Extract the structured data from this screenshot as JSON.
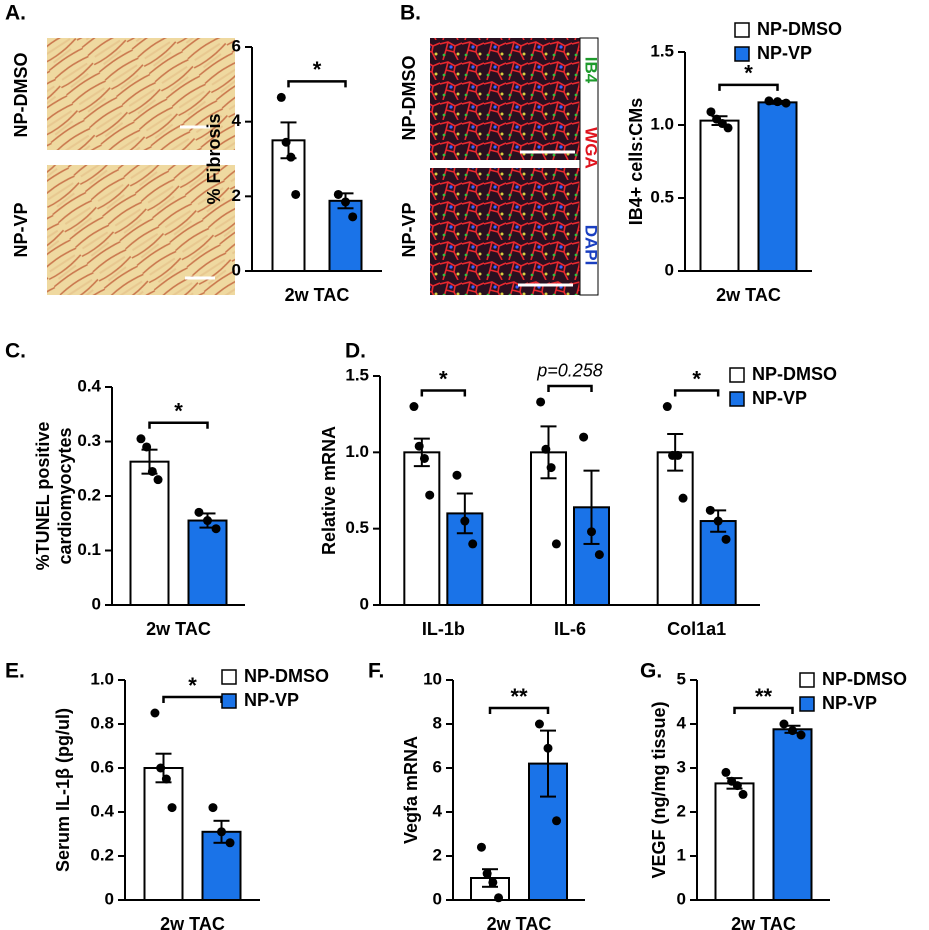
{
  "chart_data": [
    {
      "type": "bar",
      "panel": "A.",
      "ylabel": [
        "% Fibrosis"
      ],
      "categories": [
        "2w TAC"
      ],
      "ylim": [
        0,
        6
      ],
      "yticks": [
        0,
        2,
        4,
        6
      ],
      "image_rows": [
        "NP-DMSO",
        "NP-VP"
      ],
      "series": [
        {
          "color": "#ffffff",
          "values": [
            3.5
          ],
          "errors": [
            0.48
          ],
          "points": [
            [
              4.65,
              3.45,
              3.05,
              2.05
            ]
          ]
        },
        {
          "color": "#1a73e8",
          "values": [
            1.88
          ],
          "errors": [
            0.2
          ],
          "points": [
            [
              2.05,
              1.85,
              1.45
            ]
          ]
        }
      ],
      "annotations": [
        {
          "text": "*"
        }
      ]
    },
    {
      "type": "bar",
      "panel": "B.",
      "ylabel": [
        "IB4+ cells:CMs"
      ],
      "categories": [
        "2w TAC"
      ],
      "ylim": [
        0,
        1.5
      ],
      "yticks": [
        0,
        0.5,
        {
          "value": 1,
          "label": "1.0"
        },
        1.5
      ],
      "legend": "right",
      "image_rows": [
        "NP-DMSO",
        "NP-VP"
      ],
      "stains": [
        {
          "text": "IB4",
          "color": "#1e9a2c"
        },
        {
          "text": "WGA",
          "color": "#e0141e"
        },
        {
          "text": "DAPI",
          "color": "#1a3fc0"
        }
      ],
      "series": [
        {
          "name": "NP-DMSO",
          "color": "#ffffff",
          "values": [
            1.03
          ],
          "errors": [
            0.03
          ],
          "points": [
            [
              1.09,
              1.04,
              1.01,
              0.98
            ]
          ]
        },
        {
          "name": "NP-VP",
          "color": "#1a73e8",
          "values": [
            1.155
          ],
          "errors": [
            0.01
          ],
          "points": [
            [
              1.165,
              1.16,
              1.15
            ]
          ]
        }
      ],
      "annotations": [
        {
          "text": "*"
        }
      ]
    },
    {
      "type": "bar",
      "panel": "C.",
      "ylabel": [
        "%TUNEL positive",
        "cardiomyocytes"
      ],
      "categories": [
        "2w TAC"
      ],
      "ylim": [
        0,
        0.4
      ],
      "yticks": [
        0,
        0.1,
        0.2,
        0.3,
        0.4
      ],
      "series": [
        {
          "color": "#ffffff",
          "values": [
            0.263
          ],
          "errors": [
            0.022
          ],
          "points": [
            [
              0.305,
              0.29,
              0.245,
              0.23
            ]
          ]
        },
        {
          "color": "#1a73e8",
          "values": [
            0.155
          ],
          "errors": [
            0.013
          ],
          "points": [
            [
              0.17,
              0.155,
              0.14
            ]
          ]
        }
      ],
      "annotations": [
        {
          "text": "*"
        }
      ]
    },
    {
      "type": "bar",
      "panel": "D.",
      "ylabel": [
        "Relative mRNA"
      ],
      "categories": [
        "IL-1b",
        "IL-6",
        "Col1a1"
      ],
      "ylim": [
        0,
        1.5
      ],
      "yticks": [
        0,
        0.5,
        {
          "value": 1,
          "label": "1.0"
        },
        1.5
      ],
      "legend": "right",
      "series": [
        {
          "name": "NP-DMSO",
          "color": "#ffffff",
          "values": [
            1,
            1,
            1
          ],
          "errors": [
            0.09,
            0.17,
            0.12
          ],
          "points": [
            [
              1.3,
              1.04,
              0.96,
              0.72
            ],
            [
              1.33,
              1.02,
              0.9,
              0.4
            ],
            [
              1.3,
              0.98,
              0.98,
              0.7
            ]
          ]
        },
        {
          "name": "NP-VP",
          "color": "#1a73e8",
          "values": [
            0.6,
            0.64,
            0.55
          ],
          "errors": [
            0.13,
            0.24,
            0.07
          ],
          "points": [
            [
              0.85,
              0.55,
              0.4
            ],
            [
              1.1,
              0.48,
              0.33
            ],
            [
              0.62,
              0.55,
              0.43
            ]
          ]
        }
      ],
      "annotations": [
        {
          "text": "*"
        },
        {
          "text": "p=0.258",
          "style": "italic"
        },
        {
          "text": "*"
        }
      ]
    },
    {
      "type": "bar",
      "panel": "E.",
      "ylabel": [
        "Serum IL-1β (pg/ul)"
      ],
      "categories": [
        "2w TAC"
      ],
      "ylim": [
        0,
        1
      ],
      "yticks": [
        0,
        0.2,
        0.4,
        0.6,
        0.8,
        {
          "value": 1,
          "label": "1.0"
        }
      ],
      "legend": "right",
      "series": [
        {
          "name": "NP-DMSO",
          "color": "#ffffff",
          "values": [
            0.6
          ],
          "errors": [
            0.065
          ],
          "points": [
            [
              0.85,
              0.6,
              0.55,
              0.42
            ]
          ]
        },
        {
          "name": "NP-VP",
          "color": "#1a73e8",
          "values": [
            0.31
          ],
          "errors": [
            0.05
          ],
          "points": [
            [
              0.42,
              0.31,
              0.26
            ]
          ]
        }
      ],
      "annotations": [
        {
          "text": "*"
        }
      ]
    },
    {
      "type": "bar",
      "panel": "F.",
      "ylabel": [
        "Vegfa mRNA"
      ],
      "categories": [
        "2w TAC"
      ],
      "ylim": [
        0,
        10
      ],
      "yticks": [
        0,
        2,
        4,
        6,
        8,
        10
      ],
      "series": [
        {
          "color": "#ffffff",
          "values": [
            1
          ],
          "errors": [
            0.4
          ],
          "points": [
            [
              2.4,
              1.2,
              0.8,
              0.1
            ]
          ]
        },
        {
          "color": "#1a73e8",
          "values": [
            6.2
          ],
          "errors": [
            1.5
          ],
          "points": [
            [
              8,
              6.9,
              3.6
            ]
          ]
        }
      ],
      "annotations": [
        {
          "text": "**"
        }
      ]
    },
    {
      "type": "bar",
      "panel": "G.",
      "ylabel": [
        "VEGF (ng/mg tissue)"
      ],
      "categories": [
        "2w TAC"
      ],
      "ylim": [
        0,
        5
      ],
      "yticks": [
        0,
        1,
        2,
        3,
        4,
        5
      ],
      "legend": "right",
      "series": [
        {
          "name": "NP-DMSO",
          "color": "#ffffff",
          "values": [
            2.65
          ],
          "errors": [
            0.12
          ],
          "points": [
            [
              2.9,
              2.7,
              2.6,
              2.4
            ]
          ]
        },
        {
          "name": "NP-VP",
          "color": "#1a73e8",
          "values": [
            3.88
          ],
          "errors": [
            0.08
          ],
          "points": [
            [
              4,
              3.85,
              3.75
            ]
          ]
        }
      ],
      "annotations": [
        {
          "text": "**"
        }
      ]
    }
  ]
}
